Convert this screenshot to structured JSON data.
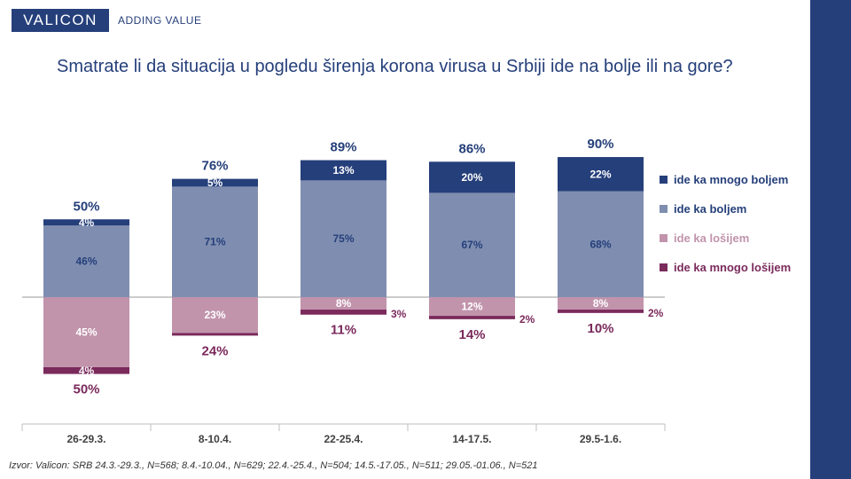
{
  "brand": {
    "logo": "VALICON",
    "tagline": "ADDING VALUE"
  },
  "title": "Smatrate li da situacija u pogledu širenja korona virusa u Srbiji ide na bolje ili na gore?",
  "source": "Izvor: Valicon: SRB 24.3.-29.3., N=568; 8.4.-10.04., N=629; 22.4.-25.4., N=504; 14.5.-17.05., N=511; 29.05.-01.06., N=521",
  "colors": {
    "brand": "#253F7A",
    "mnogo_boljem": "#253F7A",
    "boljem": "#7F8EB0",
    "losijem": "#C194AC",
    "mnogo_losijem": "#7B2A5C",
    "positive_total_text": "#253F7A",
    "negative_total_text": "#7B2A5C"
  },
  "legend": [
    {
      "label": "ide ka mnogo boljem",
      "color": "#253F7A"
    },
    {
      "label": "ide ka boljem",
      "color": "#7F8EB0"
    },
    {
      "label": "ide ka lošijem",
      "color": "#C194AC"
    },
    {
      "label": "ide ka mnogo lošijem",
      "color": "#7B2A5C"
    }
  ],
  "chart_data": {
    "type": "bar",
    "stacked": "diverging",
    "categories": [
      "26-29.3.",
      "8-10.4.",
      "22-25.4.",
      "14-17.5.",
      "29.5-1.6."
    ],
    "series": [
      {
        "name": "ide ka mnogo boljem",
        "direction": "up",
        "values": [
          4,
          5,
          13,
          20,
          22
        ],
        "labels": [
          "4%",
          "5%",
          "13%",
          "20%",
          "22%"
        ]
      },
      {
        "name": "ide ka boljem",
        "direction": "up",
        "values": [
          46,
          71,
          75,
          67,
          68
        ],
        "labels": [
          "46%",
          "71%",
          "75%",
          "67%",
          "68%"
        ]
      },
      {
        "name": "ide ka lošijem",
        "direction": "down",
        "values": [
          45,
          23,
          8,
          12,
          8
        ],
        "labels": [
          "45%",
          "23%",
          "8%",
          "12%",
          "8%"
        ]
      },
      {
        "name": "ide ka mnogo lošijem",
        "direction": "down",
        "values": [
          4,
          1,
          3,
          2,
          2
        ],
        "labels": [
          "4%",
          "",
          "3%",
          "2%",
          "2%"
        ]
      }
    ],
    "totals_positive": [
      "50%",
      "76%",
      "89%",
      "86%",
      "90%"
    ],
    "totals_negative": [
      "50%",
      "24%",
      "11%",
      "14%",
      "10%"
    ],
    "legend_position": "right",
    "grid": false
  }
}
